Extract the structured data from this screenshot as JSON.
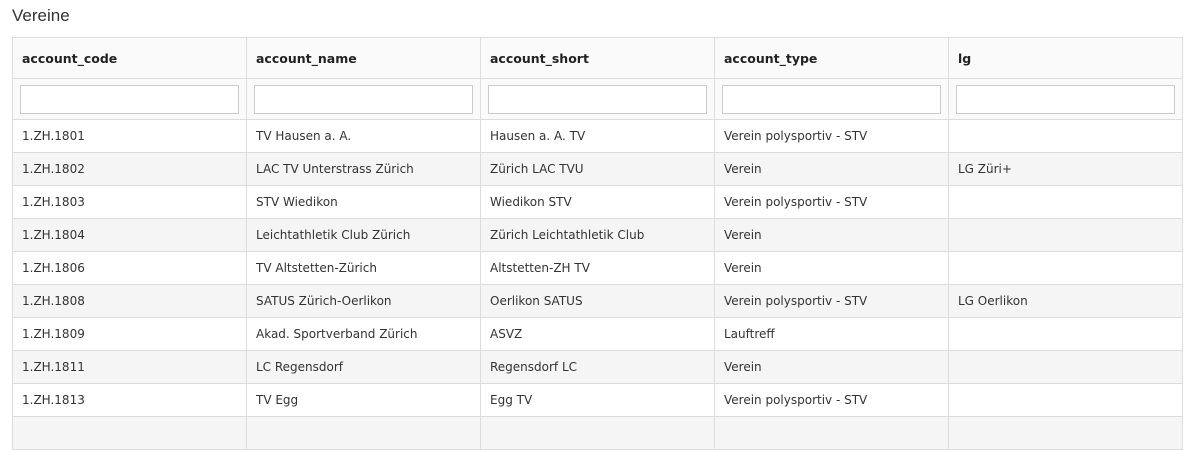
{
  "title": "Vereine",
  "columns": [
    "account_code",
    "account_name",
    "account_short",
    "account_type",
    "lg"
  ],
  "rows": [
    [
      "1.ZH.1801",
      "TV Hausen a. A.",
      "Hausen a. A. TV",
      "Verein polysportiv - STV",
      ""
    ],
    [
      "1.ZH.1802",
      "LAC TV Unterstrass Zürich",
      "Zürich LAC TVU",
      "Verein",
      "LG Züri+"
    ],
    [
      "1.ZH.1803",
      "STV Wiedikon",
      "Wiedikon STV",
      "Verein polysportiv - STV",
      ""
    ],
    [
      "1.ZH.1804",
      "Leichtathletik Club Zürich",
      "Zürich Leichtathletik Club",
      "Verein",
      ""
    ],
    [
      "1.ZH.1806",
      "TV Altstetten-Zürich",
      "Altstetten-ZH TV",
      "Verein",
      ""
    ],
    [
      "1.ZH.1808",
      "SATUS Zürich-Oerlikon",
      "Oerlikon SATUS",
      "Verein polysportiv - STV",
      "LG Oerlikon"
    ],
    [
      "1.ZH.1809",
      "Akad. Sportverband Zürich",
      "ASVZ",
      "Lauftreff",
      ""
    ],
    [
      "1.ZH.1811",
      "LC Regensdorf",
      "Regensdorf LC",
      "Verein",
      ""
    ],
    [
      "1.ZH.1813",
      "TV Egg",
      "Egg TV",
      "Verein polysportiv - STV",
      ""
    ],
    [
      "",
      "",
      "",
      "",
      ""
    ]
  ]
}
